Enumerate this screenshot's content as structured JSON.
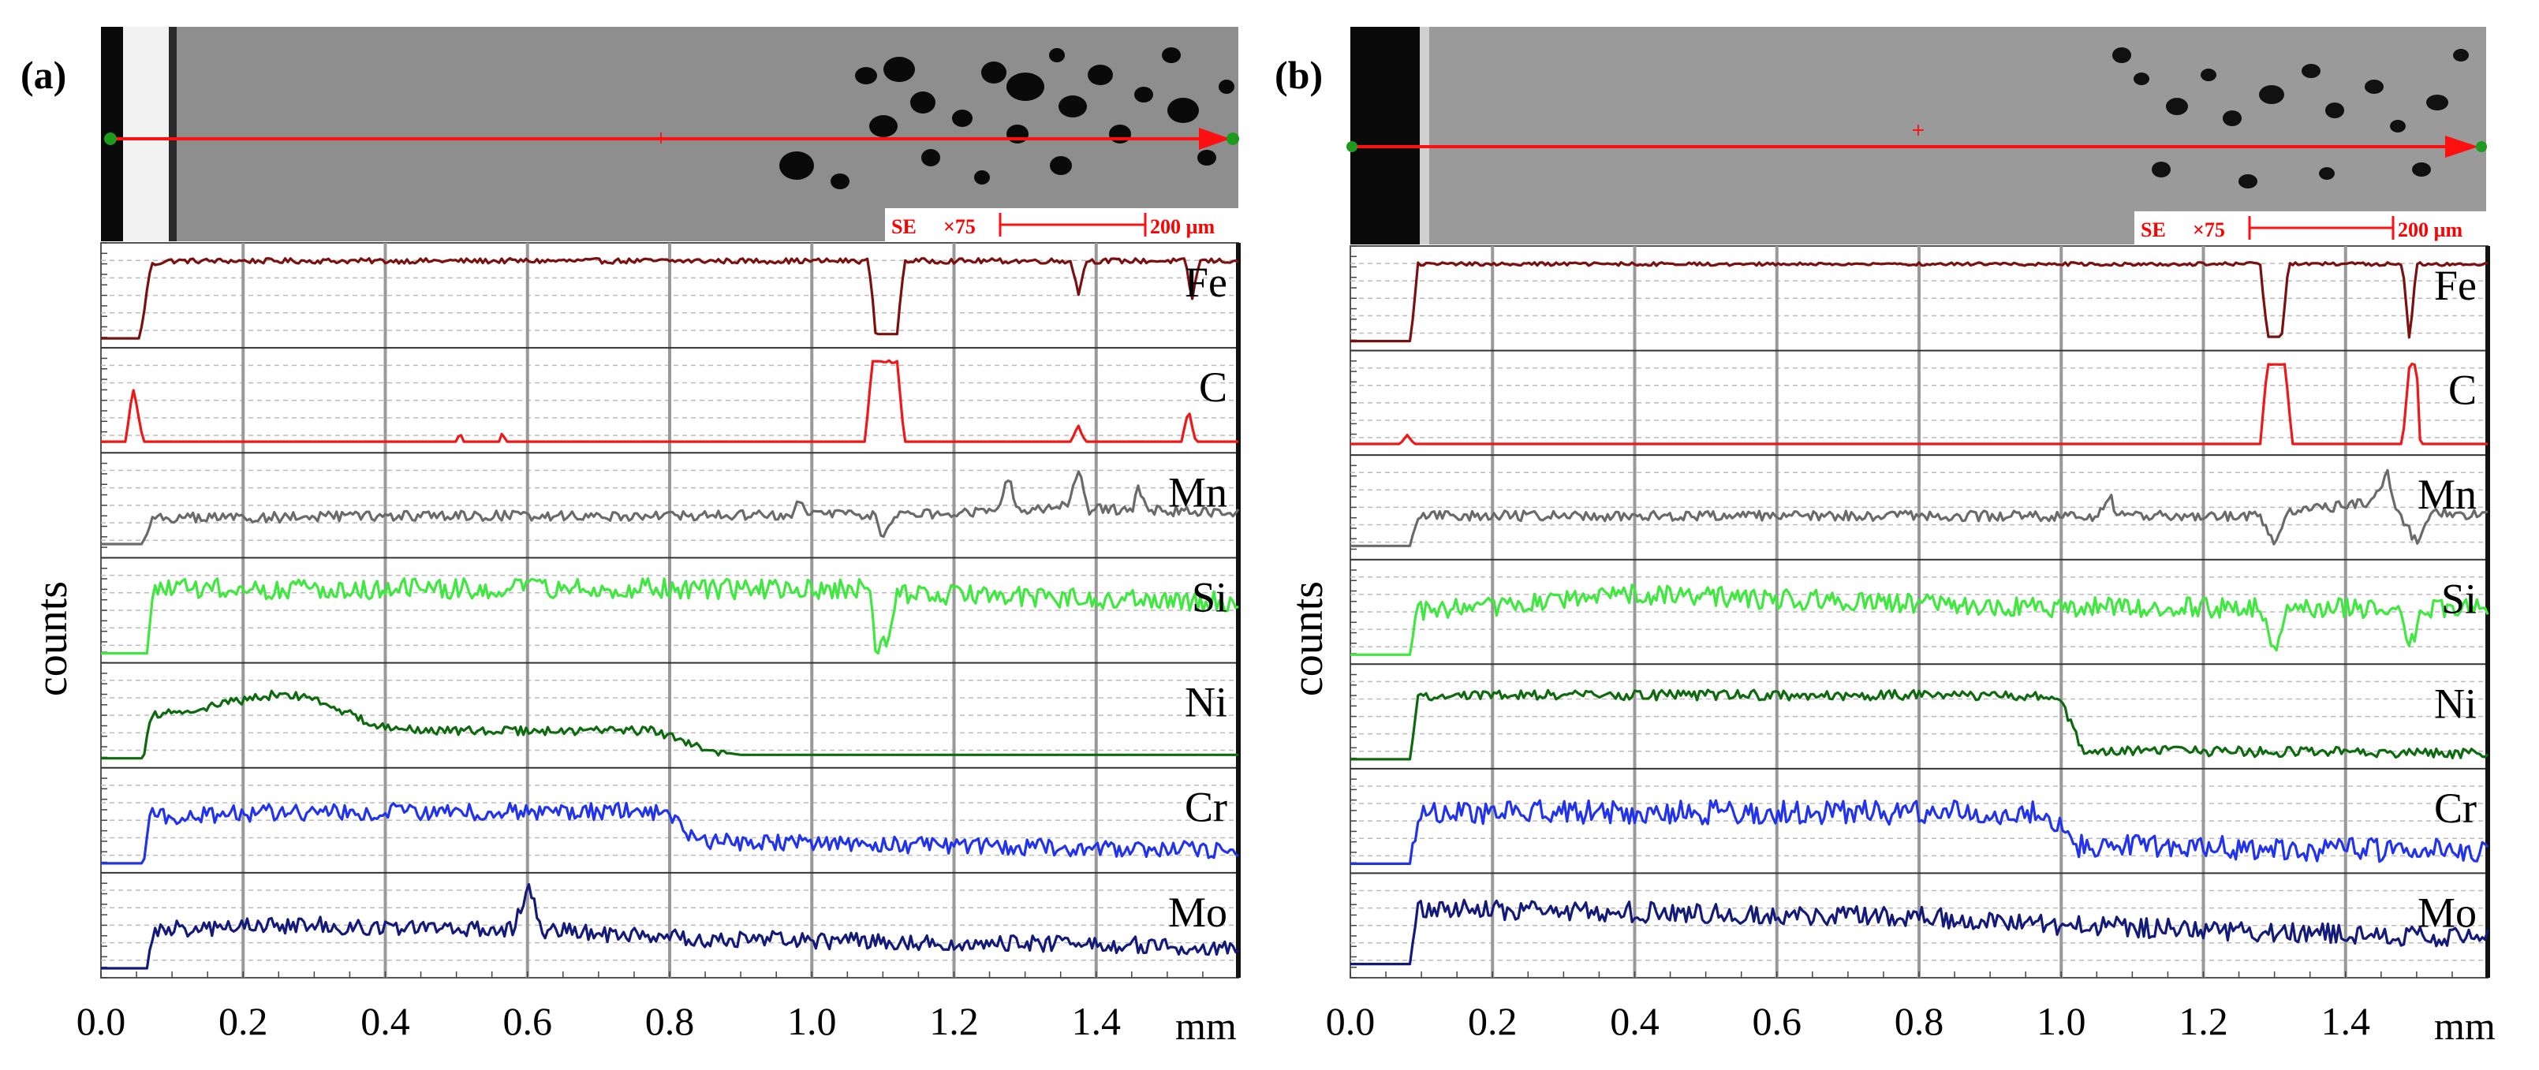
{
  "figure": {
    "y_axis_label": "counts",
    "x_unit": "mm"
  },
  "colors": {
    "Fe": "#7a1010",
    "C": "#ee1818",
    "Mn": "#6a6a6a",
    "Si": "#3ee83e",
    "Ni": "#0e6a0e",
    "Cr": "#2233ee",
    "Mo": "#141a7a",
    "scan_line": "#ff1010",
    "grid": "#999999"
  },
  "chart_data": [
    {
      "type": "line",
      "panel": "(a)",
      "title": "(a)",
      "micrograph": {
        "detector": "SE",
        "magnification": "×75",
        "scale_bar": "200 µm"
      },
      "xlabel": "mm",
      "ylabel": "counts",
      "xlim": [
        0.0,
        1.6
      ],
      "xticks": [
        "0.0",
        "0.2",
        "0.4",
        "0.6",
        "0.8",
        "1.0",
        "1.2",
        "1.4"
      ],
      "series": [
        {
          "name": "Fe",
          "points": [
            [
              0.0,
              0.0
            ],
            [
              0.055,
              0.0
            ],
            [
              0.07,
              0.85
            ],
            [
              0.09,
              0.9
            ],
            [
              0.6,
              0.9
            ],
            [
              1.08,
              0.9
            ],
            [
              1.09,
              0.05
            ],
            [
              1.12,
              0.05
            ],
            [
              1.13,
              0.9
            ],
            [
              1.365,
              0.9
            ],
            [
              1.375,
              0.5
            ],
            [
              1.385,
              0.9
            ],
            [
              1.525,
              0.9
            ],
            [
              1.535,
              0.45
            ],
            [
              1.545,
              0.9
            ],
            [
              1.6,
              0.9
            ]
          ],
          "noise": 0.03
        },
        {
          "name": "C",
          "points": [
            [
              0.0,
              0.02
            ],
            [
              0.035,
              0.02
            ],
            [
              0.045,
              0.65
            ],
            [
              0.06,
              0.02
            ],
            [
              0.5,
              0.02
            ],
            [
              0.505,
              0.12
            ],
            [
              0.51,
              0.02
            ],
            [
              0.56,
              0.02
            ],
            [
              0.565,
              0.12
            ],
            [
              0.57,
              0.02
            ],
            [
              1.075,
              0.02
            ],
            [
              1.085,
              0.95
            ],
            [
              1.12,
              0.95
            ],
            [
              1.13,
              0.02
            ],
            [
              1.365,
              0.02
            ],
            [
              1.375,
              0.2
            ],
            [
              1.385,
              0.02
            ],
            [
              1.52,
              0.02
            ],
            [
              1.53,
              0.4
            ],
            [
              1.54,
              0.02
            ],
            [
              1.6,
              0.02
            ]
          ],
          "noise": 0.015
        },
        {
          "name": "Mn",
          "points": [
            [
              0.0,
              0.05
            ],
            [
              0.06,
              0.05
            ],
            [
              0.07,
              0.35
            ],
            [
              0.5,
              0.38
            ],
            [
              0.97,
              0.38
            ],
            [
              0.98,
              0.6
            ],
            [
              0.99,
              0.4
            ],
            [
              1.09,
              0.4
            ],
            [
              1.1,
              0.1
            ],
            [
              1.12,
              0.4
            ],
            [
              1.26,
              0.42
            ],
            [
              1.275,
              0.85
            ],
            [
              1.29,
              0.45
            ],
            [
              1.36,
              0.5
            ],
            [
              1.375,
              0.9
            ],
            [
              1.39,
              0.45
            ],
            [
              1.45,
              0.45
            ],
            [
              1.46,
              0.7
            ],
            [
              1.47,
              0.45
            ],
            [
              1.6,
              0.4
            ]
          ],
          "noise": 0.06
        },
        {
          "name": "Si",
          "points": [
            [
              0.0,
              0.0
            ],
            [
              0.065,
              0.0
            ],
            [
              0.075,
              0.75
            ],
            [
              0.6,
              0.75
            ],
            [
              1.08,
              0.75
            ],
            [
              1.09,
              0.1
            ],
            [
              1.11,
              0.1
            ],
            [
              1.12,
              0.7
            ],
            [
              1.35,
              0.65
            ],
            [
              1.6,
              0.6
            ]
          ],
          "noise": 0.12
        },
        {
          "name": "Ni",
          "points": [
            [
              0.0,
              0.0
            ],
            [
              0.06,
              0.0
            ],
            [
              0.07,
              0.5
            ],
            [
              0.15,
              0.6
            ],
            [
              0.25,
              0.75
            ],
            [
              0.3,
              0.7
            ],
            [
              0.38,
              0.4
            ],
            [
              0.45,
              0.32
            ],
            [
              0.78,
              0.32
            ],
            [
              0.85,
              0.1
            ],
            [
              0.9,
              0.04
            ],
            [
              1.6,
              0.04
            ]
          ],
          "noise": 0.05
        },
        {
          "name": "Cr",
          "points": [
            [
              0.0,
              0.0
            ],
            [
              0.06,
              0.0
            ],
            [
              0.07,
              0.55
            ],
            [
              0.3,
              0.6
            ],
            [
              0.78,
              0.6
            ],
            [
              0.85,
              0.25
            ],
            [
              1.6,
              0.15
            ]
          ],
          "noise": 0.1
        },
        {
          "name": "Mo",
          "points": [
            [
              0.0,
              0.0
            ],
            [
              0.065,
              0.0
            ],
            [
              0.075,
              0.45
            ],
            [
              0.3,
              0.5
            ],
            [
              0.58,
              0.45
            ],
            [
              0.6,
              0.95
            ],
            [
              0.62,
              0.45
            ],
            [
              0.8,
              0.35
            ],
            [
              1.6,
              0.25
            ]
          ],
          "noise": 0.1
        }
      ]
    },
    {
      "type": "line",
      "panel": "(b)",
      "title": "(b)",
      "micrograph": {
        "detector": "SE",
        "magnification": "×75",
        "scale_bar": "200 µm"
      },
      "xlabel": "mm",
      "ylabel": "counts",
      "xlim": [
        0.0,
        1.6
      ],
      "xticks": [
        "0.0",
        "0.2",
        "0.4",
        "0.6",
        "0.8",
        "1.0",
        "1.2",
        "1.4"
      ],
      "series": [
        {
          "name": "Fe",
          "points": [
            [
              0.0,
              0.0
            ],
            [
              0.085,
              0.0
            ],
            [
              0.095,
              0.9
            ],
            [
              1.28,
              0.9
            ],
            [
              1.29,
              0.05
            ],
            [
              1.31,
              0.05
            ],
            [
              1.32,
              0.9
            ],
            [
              1.48,
              0.9
            ],
            [
              1.49,
              0.0
            ],
            [
              1.5,
              0.9
            ],
            [
              1.6,
              0.9
            ]
          ],
          "noise": 0.02
        },
        {
          "name": "C",
          "points": [
            [
              0.0,
              0.02
            ],
            [
              0.07,
              0.02
            ],
            [
              0.08,
              0.12
            ],
            [
              0.09,
              0.02
            ],
            [
              1.28,
              0.02
            ],
            [
              1.29,
              0.95
            ],
            [
              1.315,
              0.95
            ],
            [
              1.325,
              0.02
            ],
            [
              1.48,
              0.02
            ],
            [
              1.49,
              0.95
            ],
            [
              1.5,
              0.95
            ],
            [
              1.505,
              0.02
            ],
            [
              1.6,
              0.02
            ]
          ],
          "noise": 0.005
        },
        {
          "name": "Mn",
          "points": [
            [
              0.0,
              0.05
            ],
            [
              0.085,
              0.05
            ],
            [
              0.095,
              0.4
            ],
            [
              1.05,
              0.4
            ],
            [
              1.07,
              0.6
            ],
            [
              1.08,
              0.4
            ],
            [
              1.28,
              0.4
            ],
            [
              1.3,
              0.05
            ],
            [
              1.32,
              0.45
            ],
            [
              1.43,
              0.55
            ],
            [
              1.46,
              0.9
            ],
            [
              1.47,
              0.45
            ],
            [
              1.5,
              0.1
            ],
            [
              1.52,
              0.45
            ],
            [
              1.6,
              0.4
            ]
          ],
          "noise": 0.06
        },
        {
          "name": "Si",
          "points": [
            [
              0.0,
              0.0
            ],
            [
              0.085,
              0.0
            ],
            [
              0.095,
              0.5
            ],
            [
              0.4,
              0.7
            ],
            [
              1.0,
              0.55
            ],
            [
              1.28,
              0.55
            ],
            [
              1.3,
              0.1
            ],
            [
              1.32,
              0.55
            ],
            [
              1.48,
              0.55
            ],
            [
              1.49,
              0.1
            ],
            [
              1.51,
              0.55
            ],
            [
              1.6,
              0.55
            ]
          ],
          "noise": 0.12
        },
        {
          "name": "Ni",
          "points": [
            [
              0.0,
              0.0
            ],
            [
              0.085,
              0.0
            ],
            [
              0.095,
              0.75
            ],
            [
              0.97,
              0.75
            ],
            [
              1.0,
              0.7
            ],
            [
              1.03,
              0.1
            ],
            [
              1.6,
              0.07
            ]
          ],
          "noise": 0.06
        },
        {
          "name": "Cr",
          "points": [
            [
              0.0,
              0.0
            ],
            [
              0.085,
              0.0
            ],
            [
              0.095,
              0.6
            ],
            [
              0.98,
              0.6
            ],
            [
              1.02,
              0.2
            ],
            [
              1.6,
              0.15
            ]
          ],
          "noise": 0.14
        },
        {
          "name": "Mo",
          "points": [
            [
              0.0,
              0.05
            ],
            [
              0.085,
              0.05
            ],
            [
              0.095,
              0.7
            ],
            [
              0.8,
              0.6
            ],
            [
              1.0,
              0.5
            ],
            [
              1.6,
              0.35
            ]
          ],
          "noise": 0.12
        }
      ]
    }
  ]
}
